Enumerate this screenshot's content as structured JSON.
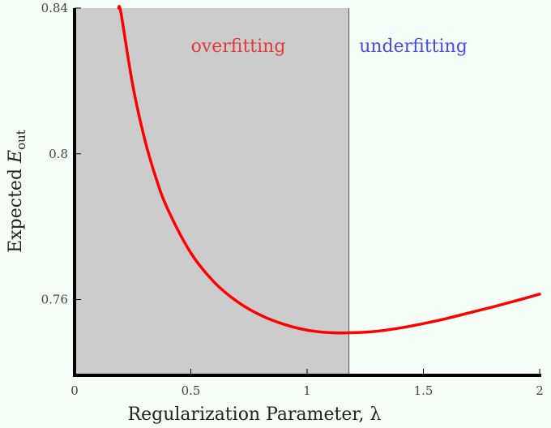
{
  "chart_data": {
    "type": "line",
    "xlabel": "Regularization Parameter, λ",
    "ylabel": {
      "prefix": "Expected ",
      "symbol": "E",
      "subscript": "out"
    },
    "xlim": [
      0,
      2
    ],
    "ylim": [
      0.7392,
      0.84
    ],
    "x_ticks": [
      0,
      0.5,
      1,
      1.5,
      2
    ],
    "x_tick_labels": [
      "0",
      "0.5",
      "1",
      "1.5",
      "2"
    ],
    "y_ticks": [
      0.76,
      0.8,
      0.84
    ],
    "y_tick_labels": [
      "0.76",
      "0.8",
      "0.84"
    ],
    "shaded_region": {
      "x_from": 0,
      "x_to": 1.18,
      "color": "#cccccc"
    },
    "annotations": [
      {
        "text": "overfitting",
        "color": "#e23a3a"
      },
      {
        "text": "underfitting",
        "color": "#4a4ae6"
      }
    ],
    "series": [
      {
        "color": "#ff0000",
        "x": [
          0.19,
          0.2,
          0.25,
          0.3,
          0.35,
          0.4,
          0.5,
          0.6,
          0.7,
          0.8,
          0.9,
          1.0,
          1.1,
          1.2,
          1.3,
          1.4,
          1.5,
          1.6,
          1.7,
          1.8,
          1.9,
          2.0
        ],
        "y": [
          0.845,
          0.8385,
          0.8189,
          0.8044,
          0.7934,
          0.7849,
          0.7728,
          0.7648,
          0.7594,
          0.7557,
          0.7532,
          0.7516,
          0.7509,
          0.7509,
          0.7513,
          0.7522,
          0.7534,
          0.7548,
          0.7564,
          0.758,
          0.7597,
          0.7615
        ]
      }
    ]
  }
}
